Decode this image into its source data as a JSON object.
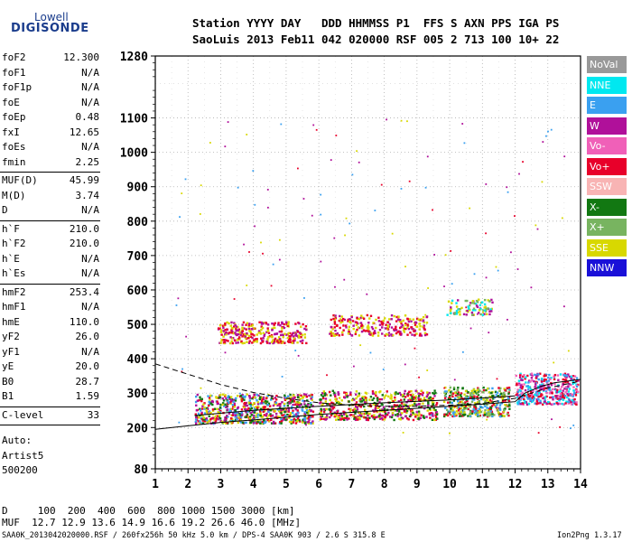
{
  "logo": {
    "top": "Lowell",
    "bottom": "DIGISONDE"
  },
  "header": {
    "line1": "Station YYYY DAY   DDD HHMMSS P1  FFS S AXN PPS IGA PS",
    "line2": "SaoLuis 2013 Feb11 042 020000 RSF 005 2 713 100 10+ 22"
  },
  "params_groups": [
    [
      {
        "name": "foF2",
        "value": "12.300"
      },
      {
        "name": "foF1",
        "value": "N/A"
      },
      {
        "name": "foF1p",
        "value": "N/A"
      },
      {
        "name": "foE",
        "value": "N/A"
      },
      {
        "name": "foEp",
        "value": "0.48"
      },
      {
        "name": "fxI",
        "value": "12.65"
      },
      {
        "name": "foEs",
        "value": "N/A"
      },
      {
        "name": "fmin",
        "value": "2.25"
      }
    ],
    [
      {
        "name": "MUF(D)",
        "value": "45.99"
      },
      {
        "name": "M(D)",
        "value": "3.74"
      },
      {
        "name": "D",
        "value": "N/A"
      }
    ],
    [
      {
        "name": "h`F",
        "value": "210.0"
      },
      {
        "name": "h`F2",
        "value": "210.0"
      },
      {
        "name": "h`E",
        "value": "N/A"
      },
      {
        "name": "h`Es",
        "value": "N/A"
      }
    ],
    [
      {
        "name": "hmF2",
        "value": "253.4"
      },
      {
        "name": "hmF1",
        "value": "N/A"
      },
      {
        "name": "hmE",
        "value": "110.0"
      },
      {
        "name": "yF2",
        "value": "26.0"
      },
      {
        "name": "yF1",
        "value": "N/A"
      },
      {
        "name": "yE",
        "value": "20.0"
      },
      {
        "name": "B0",
        "value": "28.7"
      },
      {
        "name": "B1",
        "value": "1.59"
      }
    ],
    [
      {
        "name": "C-level",
        "value": "33"
      }
    ]
  ],
  "side_text": {
    "auto": "Auto:",
    "artist": "Artist5",
    "code": "500200"
  },
  "legend": [
    {
      "label": "NoVal",
      "color": "#999999"
    },
    {
      "label": "NNE",
      "color": "#00e8f0"
    },
    {
      "label": "E",
      "color": "#3aa0f0"
    },
    {
      "label": "W",
      "color": "#b0109a"
    },
    {
      "label": "Vo-",
      "color": "#f060b8"
    },
    {
      "label": "Vo+",
      "color": "#e8002a"
    },
    {
      "label": "SSW",
      "color": "#f8b4b4"
    },
    {
      "label": "X-",
      "color": "#127812"
    },
    {
      "label": "X+",
      "color": "#78b460"
    },
    {
      "label": "SSE",
      "color": "#d8d800"
    },
    {
      "label": "NNW",
      "color": "#1a10d8"
    }
  ],
  "bottom": {
    "d_line": "D     100  200  400  600  800 1000 1500 3000 [km]",
    "muf_line": "MUF  12.7 12.9 13.6 14.9 16.6 19.2 26.6 46.0 [MHz]"
  },
  "footer": {
    "left": "SAA0K_2013042020000.RSF / 260fx256h 50 kHz 5.0 km / DPS-4 SAA0K 903 / 2.6 S 315.8 E",
    "right": "Ion2Png 1.3.17"
  },
  "chart_data": {
    "type": "scatter",
    "xlim": [
      1,
      14
    ],
    "ylim": [
      80,
      1280
    ],
    "xticks": [
      "1",
      "2",
      "3",
      "4",
      "5",
      "6",
      "7",
      "8",
      "9",
      "10",
      "11",
      "12",
      "13",
      "14"
    ],
    "yticks": [
      "80",
      "200",
      "300",
      "400",
      "500",
      "600",
      "700",
      "800",
      "900",
      "1000",
      "1100",
      "1280"
    ],
    "grid": true,
    "echo_groups": [
      {
        "x_range": [
          2.2,
          5.8
        ],
        "y_range": [
          215,
          300
        ],
        "colors": [
          "#e8002a",
          "#b0109a",
          "#d8d800",
          "#127812",
          "#3aa0f0"
        ],
        "count": 700
      },
      {
        "x_range": [
          6.0,
          9.6
        ],
        "y_range": [
          225,
          310
        ],
        "colors": [
          "#e8002a",
          "#b0109a",
          "#d8d800",
          "#127812"
        ],
        "count": 550
      },
      {
        "x_range": [
          9.8,
          11.8
        ],
        "y_range": [
          235,
          320
        ],
        "colors": [
          "#d8d800",
          "#e8002a",
          "#127812",
          "#78b460",
          "#3aa0f0"
        ],
        "count": 400
      },
      {
        "x_range": [
          12.0,
          13.9
        ],
        "y_range": [
          270,
          360
        ],
        "colors": [
          "#b0109a",
          "#e8002a",
          "#3aa0f0",
          "#00e8f0",
          "#f060b8"
        ],
        "count": 400
      },
      {
        "x_range": [
          2.9,
          5.6
        ],
        "y_range": [
          448,
          510
        ],
        "colors": [
          "#b0109a",
          "#d8d800",
          "#e8002a"
        ],
        "count": 320
      },
      {
        "x_range": [
          6.3,
          9.3
        ],
        "y_range": [
          470,
          530
        ],
        "colors": [
          "#b0109a",
          "#d8d800",
          "#e8002a"
        ],
        "count": 260
      },
      {
        "x_range": [
          9.9,
          11.3
        ],
        "y_range": [
          530,
          575
        ],
        "colors": [
          "#d8d800",
          "#78b460",
          "#00e8f0",
          "#b0109a"
        ],
        "count": 90
      },
      {
        "x_range": [
          1.4,
          13.8
        ],
        "y_range": [
          180,
          1100
        ],
        "colors": [
          "#b0109a",
          "#d8d800",
          "#3aa0f0",
          "#e8002a"
        ],
        "count": 150
      }
    ],
    "curves": [
      {
        "style": "solid",
        "points": [
          [
            1,
            195
          ],
          [
            2,
            205
          ],
          [
            3,
            215
          ],
          [
            4,
            222
          ],
          [
            5,
            230
          ],
          [
            6,
            238
          ],
          [
            7,
            244
          ],
          [
            8,
            250
          ],
          [
            9,
            256
          ],
          [
            10,
            262
          ],
          [
            11,
            268
          ],
          [
            12,
            275
          ],
          [
            12.3,
            300
          ],
          [
            12.8,
            320
          ],
          [
            13.2,
            330
          ],
          [
            14,
            340
          ]
        ]
      },
      {
        "style": "dashed",
        "points": [
          [
            1,
            385
          ],
          [
            2,
            355
          ],
          [
            3,
            325
          ],
          [
            4,
            302
          ],
          [
            5,
            285
          ],
          [
            6,
            272
          ],
          [
            7,
            265
          ],
          [
            8,
            262
          ],
          [
            9,
            262
          ],
          [
            10,
            265
          ],
          [
            11,
            270
          ],
          [
            12,
            285
          ],
          [
            12.5,
            300
          ],
          [
            13,
            315
          ],
          [
            14,
            335
          ]
        ]
      },
      {
        "style": "solid",
        "points": [
          [
            2.2,
            235
          ],
          [
            4,
            250
          ],
          [
            6,
            262
          ],
          [
            8,
            272
          ],
          [
            10,
            280
          ],
          [
            12,
            292
          ]
        ]
      }
    ]
  }
}
